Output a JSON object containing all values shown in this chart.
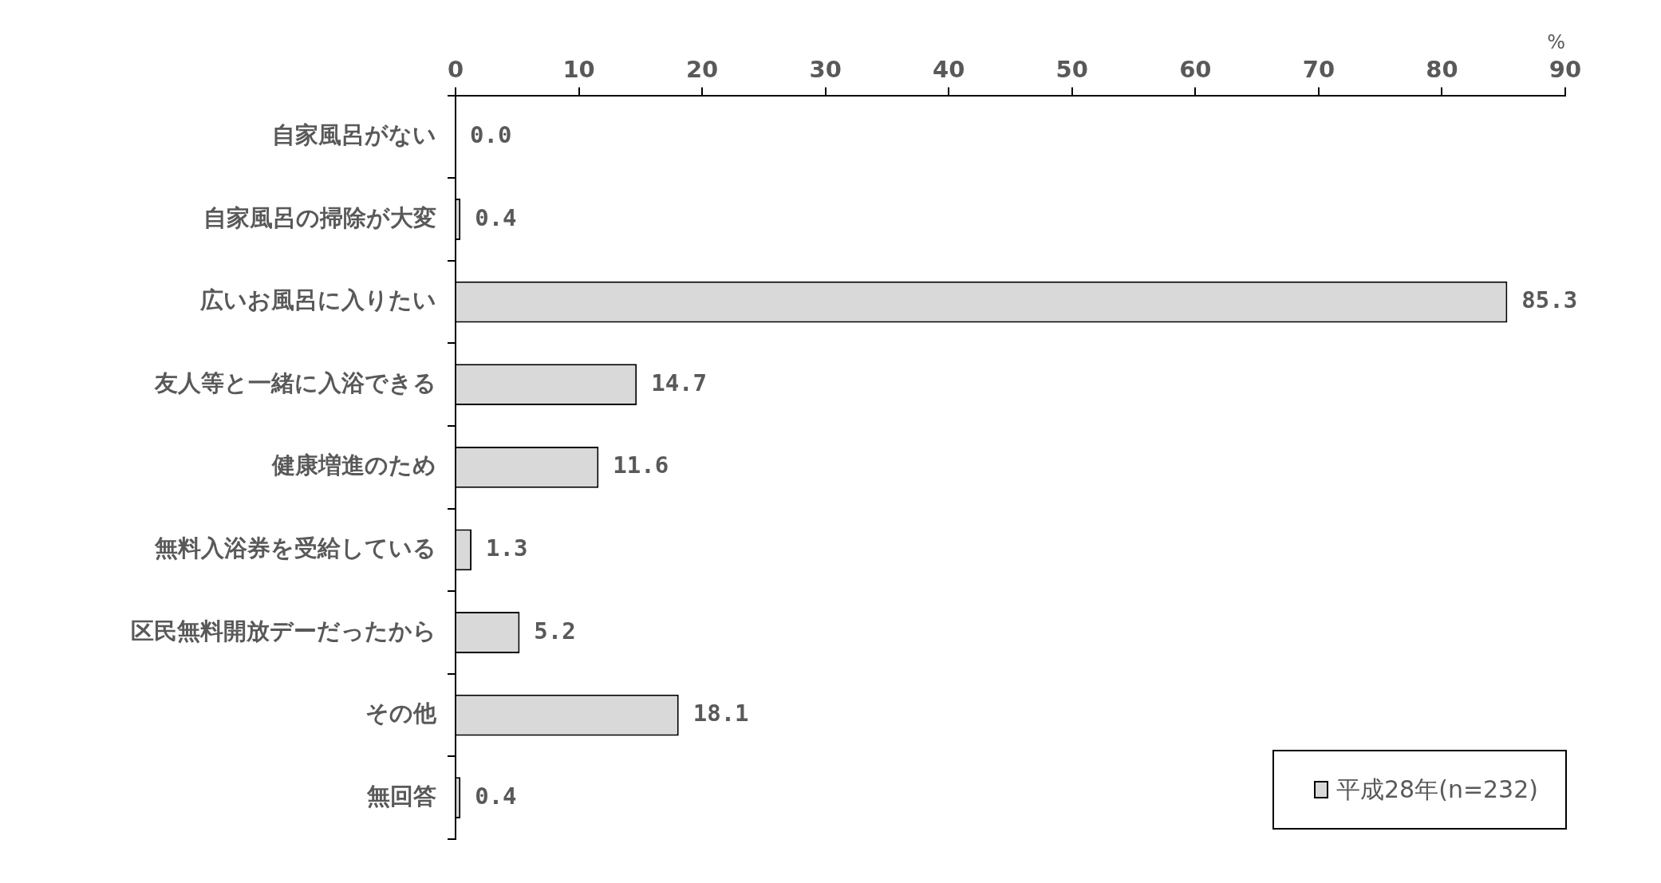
{
  "chart_data": {
    "type": "bar",
    "orientation": "horizontal",
    "xlabel": "%",
    "categories": [
      "自家風呂がない",
      "自家風呂の掃除が大変",
      "広いお風呂に入りたい",
      "友人等と一緒に入浴できる",
      "健康増進のため",
      "無料入浴券を受給している",
      "区民無料開放デーだったから",
      "その他",
      "無回答"
    ],
    "series": [
      {
        "name": "平成28年(n=232)",
        "color": "#d9d9d9",
        "values": [
          0.0,
          0.4,
          85.3,
          14.7,
          11.6,
          1.3,
          5.2,
          18.1,
          0.4
        ],
        "value_labels": [
          "0.0",
          "0.4",
          "85.3",
          "14.7",
          "11.6",
          "1.3",
          "5.2",
          "18.1",
          "0.4"
        ]
      }
    ],
    "xlim": [
      0,
      90
    ],
    "xticks": [
      0,
      10,
      20,
      30,
      40,
      50,
      60,
      70,
      80,
      90
    ],
    "grid": false,
    "legend": "bottom right"
  }
}
